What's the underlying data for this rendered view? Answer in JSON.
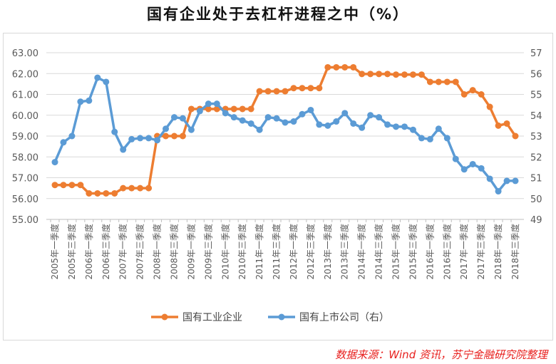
{
  "title": "国有企业处于去杠杆进程之中（%）",
  "source": "数据来源：Wind 资讯，苏宁金融研究院整理",
  "chart_data": {
    "type": "line",
    "title": "国有企业处于去杠杆进程之中（%）",
    "x_tick_labels": [
      "2005年一季度",
      "2005年三季度",
      "2006年一季度",
      "2006年三季度",
      "2007年一季度",
      "2007年三季度",
      "2008年一季度",
      "2008年三季度",
      "2009年一季度",
      "2009年三季度",
      "2010年一季度",
      "2010年三季度",
      "2011年一季度",
      "2011年三季度",
      "2012年一季度",
      "2012年三季度",
      "2013年一季度",
      "2013年三季度",
      "2014年一季度",
      "2014年三季度",
      "2015年一季度",
      "2015年三季度",
      "2016年一季度",
      "2016年三季度",
      "2017年一季度",
      "2017年三季度",
      "2018年一季度",
      "2018年三季度"
    ],
    "x_start": "2005Q1",
    "x_end": "2018Q3",
    "x_frequency": "quarterly",
    "y_left": {
      "range": [
        55,
        63
      ],
      "ticks": [
        "55.00",
        "56.00",
        "57.00",
        "58.00",
        "59.00",
        "60.00",
        "61.00",
        "62.00",
        "63.00"
      ]
    },
    "y_right": {
      "range": [
        49,
        57
      ],
      "ticks": [
        "49",
        "50",
        "51",
        "52",
        "53",
        "54",
        "55",
        "56",
        "57"
      ]
    },
    "grid": true,
    "legend_position": "bottom",
    "series": [
      {
        "name": "国有工业企业",
        "axis": "left",
        "color": "#ed7d31",
        "values": [
          56.65,
          56.65,
          56.65,
          56.65,
          56.25,
          56.25,
          56.25,
          56.25,
          56.5,
          56.5,
          56.5,
          56.5,
          59.0,
          59.0,
          59.0,
          59.0,
          60.3,
          60.3,
          60.3,
          60.3,
          60.3,
          60.3,
          60.3,
          60.3,
          61.15,
          61.15,
          61.15,
          61.15,
          61.3,
          61.3,
          61.3,
          61.3,
          62.3,
          62.3,
          62.3,
          62.3,
          61.98,
          61.98,
          61.98,
          61.98,
          61.95,
          61.95,
          61.95,
          61.95,
          61.6,
          61.6,
          61.6,
          61.6,
          61.0,
          61.2,
          61.0,
          60.4,
          59.5,
          59.6,
          59.0
        ]
      },
      {
        "name": "国有上市公司（右）",
        "axis": "right",
        "color": "#5b9bd5",
        "values": [
          51.75,
          52.7,
          53.0,
          54.65,
          54.7,
          55.8,
          55.6,
          53.2,
          52.35,
          52.85,
          52.9,
          52.9,
          52.8,
          53.35,
          53.9,
          53.85,
          53.3,
          54.2,
          54.55,
          54.55,
          54.1,
          53.9,
          53.75,
          53.6,
          53.3,
          53.9,
          53.85,
          53.65,
          53.7,
          54.05,
          54.25,
          53.55,
          53.5,
          53.7,
          54.1,
          53.6,
          53.4,
          54.0,
          53.9,
          53.55,
          53.45,
          53.45,
          53.3,
          52.9,
          52.85,
          53.35,
          52.9,
          51.9,
          51.4,
          51.65,
          51.45,
          50.95,
          50.35,
          50.85,
          50.85
        ]
      }
    ]
  }
}
